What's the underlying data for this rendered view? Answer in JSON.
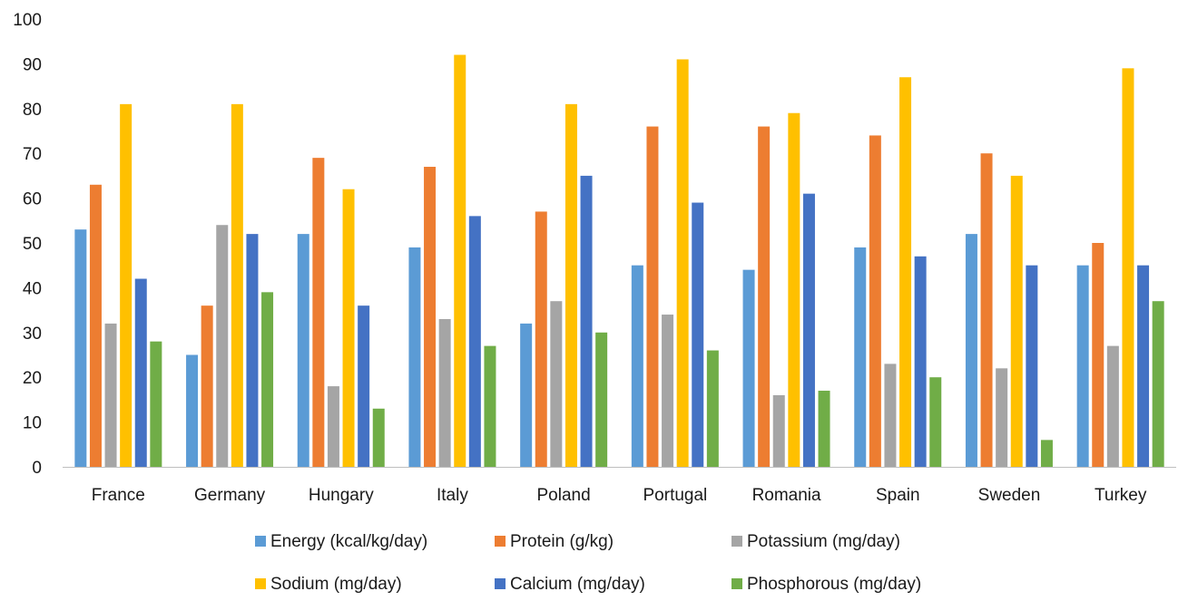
{
  "chart_data": {
    "type": "bar",
    "title": "",
    "xlabel": "",
    "ylabel": "",
    "ylim": [
      0,
      100
    ],
    "yticks": [
      0,
      10,
      20,
      30,
      40,
      50,
      60,
      70,
      80,
      90,
      100
    ],
    "grid": false,
    "legend_position": "bottom",
    "categories": [
      "France",
      "Germany",
      "Hungary",
      "Italy",
      "Poland",
      "Portugal",
      "Romania",
      "Spain",
      "Sweden",
      "Turkey"
    ],
    "series": [
      {
        "name": "Energy (kcal/kg/day)",
        "color": "#5B9BD5",
        "values": [
          53,
          25,
          52,
          49,
          32,
          45,
          44,
          49,
          52,
          45
        ]
      },
      {
        "name": "Protein (g/kg)",
        "color": "#ED7D31",
        "values": [
          63,
          36,
          69,
          67,
          57,
          76,
          76,
          74,
          70,
          50
        ]
      },
      {
        "name": "Potassium (mg/day)",
        "color": "#A5A5A5",
        "values": [
          32,
          54,
          18,
          33,
          37,
          34,
          16,
          23,
          22,
          27
        ]
      },
      {
        "name": "Sodium (mg/day)",
        "color": "#FFC000",
        "values": [
          81,
          81,
          62,
          92,
          81,
          91,
          79,
          87,
          65,
          89
        ]
      },
      {
        "name": "Calcium (mg/day)",
        "color": "#4472C4",
        "values": [
          42,
          52,
          36,
          56,
          65,
          59,
          61,
          47,
          45,
          45
        ]
      },
      {
        "name": "Phosphorous (mg/day)",
        "color": "#70AD47",
        "values": [
          28,
          39,
          13,
          27,
          30,
          26,
          17,
          20,
          6,
          37
        ]
      }
    ]
  }
}
